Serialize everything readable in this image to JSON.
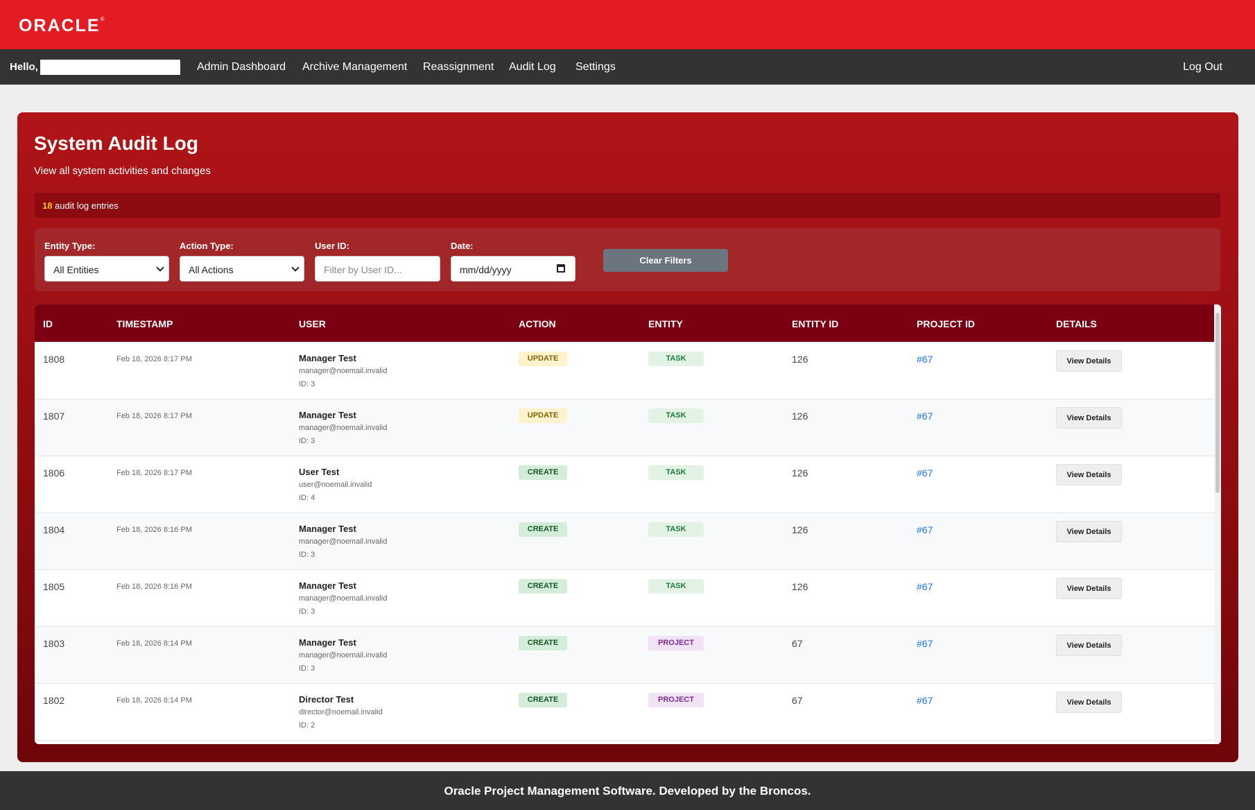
{
  "header": {
    "logo": "ORACLE"
  },
  "nav": {
    "hello": "Hello,",
    "items": [
      {
        "label": "Admin Dashboard"
      },
      {
        "label": "Archive Management"
      },
      {
        "label": "Reassignment"
      },
      {
        "label": "Audit Log"
      },
      {
        "label": "Settings"
      }
    ],
    "logout": "Log Out"
  },
  "page": {
    "title": "System Audit Log",
    "subtitle": "View all system activities and changes",
    "count": "18",
    "count_label": "audit log entries"
  },
  "filters": {
    "entity_type": {
      "label": "Entity Type:",
      "value": "All Entities"
    },
    "action_type": {
      "label": "Action Type:",
      "value": "All Actions"
    },
    "user_id": {
      "label": "User ID:",
      "placeholder": "Filter by User ID..."
    },
    "date": {
      "label": "Date:",
      "value": "mm/dd/yyyy"
    },
    "clear_label": "Clear Filters"
  },
  "table": {
    "columns": [
      "ID",
      "TIMESTAMP",
      "USER",
      "ACTION",
      "ENTITY",
      "ENTITY ID",
      "PROJECT ID",
      "DETAILS"
    ],
    "view_label": "View Details",
    "rows": [
      {
        "id": "1808",
        "ts": "Feb 18, 2026 8:17 PM",
        "name": "Manager Test",
        "email": "manager@noemail.invalid",
        "uid": "ID: 3",
        "action": "UPDATE",
        "entity": "TASK",
        "entity_id": "126",
        "project": "#67"
      },
      {
        "id": "1807",
        "ts": "Feb 18, 2026 8:17 PM",
        "name": "Manager Test",
        "email": "manager@noemail.invalid",
        "uid": "ID: 3",
        "action": "UPDATE",
        "entity": "TASK",
        "entity_id": "126",
        "project": "#67"
      },
      {
        "id": "1806",
        "ts": "Feb 18, 2026 8:17 PM",
        "name": "User Test",
        "email": "user@noemail.invalid",
        "uid": "ID: 4",
        "action": "CREATE",
        "entity": "TASK",
        "entity_id": "126",
        "project": "#67"
      },
      {
        "id": "1804",
        "ts": "Feb 18, 2026 8:16 PM",
        "name": "Manager Test",
        "email": "manager@noemail.invalid",
        "uid": "ID: 3",
        "action": "CREATE",
        "entity": "TASK",
        "entity_id": "126",
        "project": "#67"
      },
      {
        "id": "1805",
        "ts": "Feb 18, 2026 8:16 PM",
        "name": "Manager Test",
        "email": "manager@noemail.invalid",
        "uid": "ID: 3",
        "action": "CREATE",
        "entity": "TASK",
        "entity_id": "126",
        "project": "#67"
      },
      {
        "id": "1803",
        "ts": "Feb 18, 2026 8:14 PM",
        "name": "Manager Test",
        "email": "manager@noemail.invalid",
        "uid": "ID: 3",
        "action": "CREATE",
        "entity": "PROJECT",
        "entity_id": "67",
        "project": "#67"
      },
      {
        "id": "1802",
        "ts": "Feb 18, 2026 8:14 PM",
        "name": "Director Test",
        "email": "director@noemail.invalid",
        "uid": "ID: 2",
        "action": "CREATE",
        "entity": "PROJECT",
        "entity_id": "67",
        "project": "#67"
      }
    ]
  },
  "footer": {
    "text": "Oracle Project Management Software. Developed by the Broncos."
  }
}
